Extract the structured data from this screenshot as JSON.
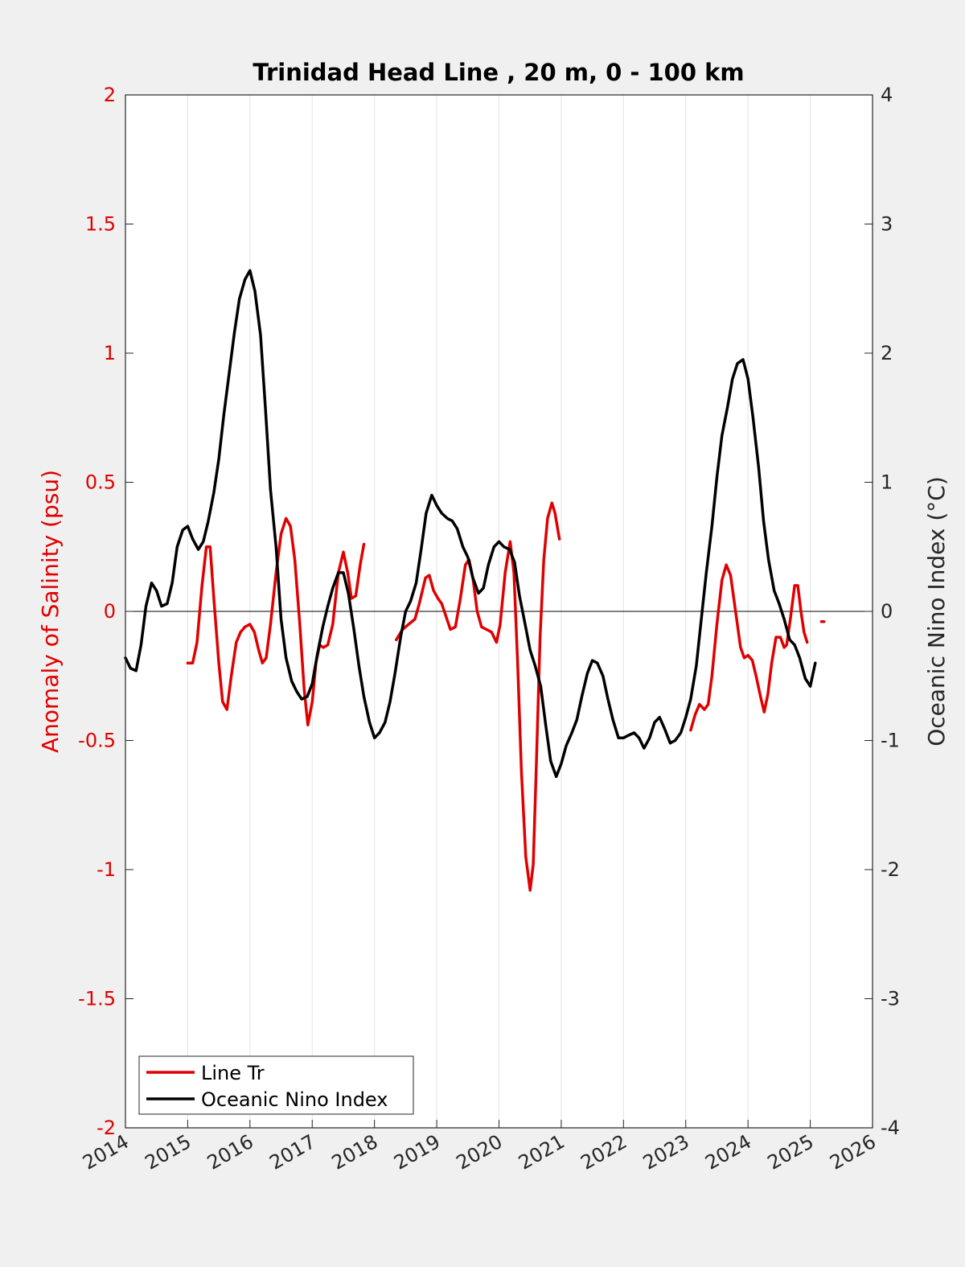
{
  "chart_data": {
    "type": "line",
    "title": "Trinidad Head Line , 20 m, 0 - 100 km",
    "ylabel_left": "Anomaly of Salinity (psu)",
    "ylabel_right": "Oceanic Nino Index (°C)",
    "xlim": [
      2014,
      2026
    ],
    "ylim_left": [
      -2,
      2
    ],
    "ylim_right": [
      -4,
      4
    ],
    "xticks": [
      2014,
      2015,
      2016,
      2017,
      2018,
      2019,
      2020,
      2021,
      2022,
      2023,
      2024,
      2025,
      2026
    ],
    "yticks_left": [
      "2",
      "1.5",
      "1",
      "0.5",
      "0",
      "-0.5",
      "-1",
      "-1.5",
      "-2"
    ],
    "yticks_right": [
      "4",
      "3",
      "2",
      "1",
      "0",
      "-1",
      "-2",
      "-3",
      "-4"
    ],
    "grid": "vertical",
    "legend_position": "bottom-left",
    "colors": {
      "salinity": "#e00000",
      "oni": "#000000",
      "axes_bg": "#ffffff",
      "figure_bg": "#f0f0f0"
    },
    "series": [
      {
        "name": "Line Tr",
        "axis": "left",
        "color": "#e00000",
        "segments": [
          [
            [
              2015.0,
              -0.2
            ],
            [
              2015.08,
              -0.2
            ],
            [
              2015.15,
              -0.12
            ],
            [
              2015.23,
              0.1
            ],
            [
              2015.3,
              0.25
            ],
            [
              2015.36,
              0.25
            ],
            [
              2015.42,
              0.05
            ],
            [
              2015.5,
              -0.2
            ],
            [
              2015.56,
              -0.35
            ],
            [
              2015.63,
              -0.38
            ],
            [
              2015.7,
              -0.25
            ],
            [
              2015.78,
              -0.12
            ],
            [
              2015.85,
              -0.08
            ],
            [
              2015.92,
              -0.06
            ],
            [
              2016.0,
              -0.05
            ],
            [
              2016.07,
              -0.08
            ],
            [
              2016.14,
              -0.15
            ],
            [
              2016.2,
              -0.2
            ],
            [
              2016.26,
              -0.18
            ],
            [
              2016.33,
              -0.05
            ],
            [
              2016.42,
              0.15
            ],
            [
              2016.5,
              0.3
            ],
            [
              2016.58,
              0.36
            ],
            [
              2016.65,
              0.33
            ],
            [
              2016.72,
              0.2
            ],
            [
              2016.8,
              -0.05
            ],
            [
              2016.87,
              -0.3
            ],
            [
              2016.93,
              -0.44
            ],
            [
              2017.0,
              -0.35
            ],
            [
              2017.06,
              -0.2
            ],
            [
              2017.12,
              -0.13
            ],
            [
              2017.18,
              -0.14
            ],
            [
              2017.25,
              -0.13
            ],
            [
              2017.33,
              -0.05
            ],
            [
              2017.42,
              0.15
            ],
            [
              2017.5,
              0.23
            ],
            [
              2017.57,
              0.15
            ],
            [
              2017.63,
              0.05
            ],
            [
              2017.7,
              0.06
            ],
            [
              2017.77,
              0.18
            ],
            [
              2017.83,
              0.26
            ]
          ],
          [
            [
              2018.35,
              -0.11
            ],
            [
              2018.45,
              -0.07
            ],
            [
              2018.55,
              -0.05
            ],
            [
              2018.65,
              -0.03
            ],
            [
              2018.72,
              0.03
            ],
            [
              2018.82,
              0.13
            ],
            [
              2018.88,
              0.14
            ],
            [
              2018.95,
              0.08
            ],
            [
              2019.02,
              0.05
            ],
            [
              2019.08,
              0.03
            ],
            [
              2019.15,
              -0.02
            ],
            [
              2019.22,
              -0.07
            ],
            [
              2019.3,
              -0.06
            ],
            [
              2019.38,
              0.05
            ],
            [
              2019.46,
              0.18
            ],
            [
              2019.52,
              0.2
            ],
            [
              2019.58,
              0.13
            ],
            [
              2019.65,
              0.0
            ],
            [
              2019.72,
              -0.06
            ],
            [
              2019.8,
              -0.07
            ],
            [
              2019.88,
              -0.08
            ],
            [
              2019.96,
              -0.12
            ],
            [
              2020.02,
              -0.05
            ],
            [
              2020.1,
              0.15
            ],
            [
              2020.18,
              0.27
            ],
            [
              2020.24,
              0.15
            ],
            [
              2020.3,
              -0.2
            ],
            [
              2020.36,
              -0.62
            ],
            [
              2020.43,
              -0.95
            ],
            [
              2020.5,
              -1.08
            ],
            [
              2020.55,
              -0.98
            ],
            [
              2020.6,
              -0.6
            ],
            [
              2020.66,
              -0.1
            ],
            [
              2020.72,
              0.2
            ],
            [
              2020.78,
              0.36
            ],
            [
              2020.85,
              0.42
            ],
            [
              2020.9,
              0.38
            ],
            [
              2020.97,
              0.28
            ]
          ],
          [
            [
              2023.08,
              -0.46
            ],
            [
              2023.15,
              -0.4
            ],
            [
              2023.22,
              -0.36
            ],
            [
              2023.3,
              -0.38
            ],
            [
              2023.36,
              -0.36
            ],
            [
              2023.42,
              -0.25
            ],
            [
              2023.5,
              -0.05
            ],
            [
              2023.58,
              0.12
            ],
            [
              2023.65,
              0.18
            ],
            [
              2023.72,
              0.14
            ],
            [
              2023.8,
              0.0
            ],
            [
              2023.88,
              -0.14
            ],
            [
              2023.94,
              -0.18
            ],
            [
              2024.0,
              -0.17
            ],
            [
              2024.07,
              -0.19
            ],
            [
              2024.13,
              -0.25
            ],
            [
              2024.2,
              -0.33
            ],
            [
              2024.26,
              -0.39
            ],
            [
              2024.32,
              -0.32
            ],
            [
              2024.38,
              -0.2
            ],
            [
              2024.45,
              -0.1
            ],
            [
              2024.52,
              -0.1
            ],
            [
              2024.58,
              -0.14
            ],
            [
              2024.62,
              -0.13
            ],
            [
              2024.68,
              -0.03
            ],
            [
              2024.75,
              0.1
            ],
            [
              2024.8,
              0.1
            ],
            [
              2024.85,
              0.0
            ],
            [
              2024.9,
              -0.08
            ],
            [
              2024.95,
              -0.12
            ]
          ],
          [
            [
              2025.18,
              -0.04
            ],
            [
              2025.22,
              -0.04
            ]
          ]
        ]
      },
      {
        "name": "Oceanic Nino Index",
        "axis": "right",
        "color": "#000000",
        "segments": [
          [
            [
              2014.0,
              -0.36
            ],
            [
              2014.08,
              -0.44
            ],
            [
              2014.17,
              -0.46
            ],
            [
              2014.25,
              -0.26
            ],
            [
              2014.33,
              0.04
            ],
            [
              2014.42,
              0.22
            ],
            [
              2014.5,
              0.16
            ],
            [
              2014.58,
              0.04
            ],
            [
              2014.67,
              0.06
            ],
            [
              2014.75,
              0.22
            ],
            [
              2014.83,
              0.5
            ],
            [
              2014.92,
              0.63
            ],
            [
              2015.0,
              0.66
            ],
            [
              2015.08,
              0.56
            ],
            [
              2015.17,
              0.48
            ],
            [
              2015.25,
              0.54
            ],
            [
              2015.33,
              0.7
            ],
            [
              2015.42,
              0.92
            ],
            [
              2015.5,
              1.18
            ],
            [
              2015.58,
              1.52
            ],
            [
              2015.67,
              1.86
            ],
            [
              2015.75,
              2.16
            ],
            [
              2015.83,
              2.42
            ],
            [
              2015.92,
              2.57
            ],
            [
              2016.0,
              2.64
            ],
            [
              2016.08,
              2.48
            ],
            [
              2016.17,
              2.14
            ],
            [
              2016.25,
              1.56
            ],
            [
              2016.33,
              0.94
            ],
            [
              2016.42,
              0.5
            ],
            [
              2016.5,
              -0.06
            ],
            [
              2016.58,
              -0.36
            ],
            [
              2016.67,
              -0.54
            ],
            [
              2016.75,
              -0.62
            ],
            [
              2016.83,
              -0.68
            ],
            [
              2016.92,
              -0.66
            ],
            [
              2017.0,
              -0.56
            ],
            [
              2017.08,
              -0.34
            ],
            [
              2017.17,
              -0.12
            ],
            [
              2017.25,
              0.04
            ],
            [
              2017.33,
              0.18
            ],
            [
              2017.42,
              0.3
            ],
            [
              2017.5,
              0.3
            ],
            [
              2017.58,
              0.14
            ],
            [
              2017.67,
              -0.14
            ],
            [
              2017.75,
              -0.42
            ],
            [
              2017.83,
              -0.66
            ],
            [
              2017.92,
              -0.86
            ],
            [
              2018.0,
              -0.98
            ],
            [
              2018.08,
              -0.94
            ],
            [
              2018.17,
              -0.86
            ],
            [
              2018.25,
              -0.7
            ],
            [
              2018.33,
              -0.48
            ],
            [
              2018.42,
              -0.2
            ],
            [
              2018.5,
              0.0
            ],
            [
              2018.58,
              0.08
            ],
            [
              2018.67,
              0.22
            ],
            [
              2018.75,
              0.48
            ],
            [
              2018.83,
              0.76
            ],
            [
              2018.92,
              0.9
            ],
            [
              2019.0,
              0.82
            ],
            [
              2019.08,
              0.76
            ],
            [
              2019.17,
              0.72
            ],
            [
              2019.25,
              0.7
            ],
            [
              2019.33,
              0.64
            ],
            [
              2019.42,
              0.5
            ],
            [
              2019.5,
              0.42
            ],
            [
              2019.58,
              0.26
            ],
            [
              2019.67,
              0.14
            ],
            [
              2019.75,
              0.18
            ],
            [
              2019.83,
              0.36
            ],
            [
              2019.92,
              0.5
            ],
            [
              2020.0,
              0.54
            ],
            [
              2020.08,
              0.5
            ],
            [
              2020.17,
              0.48
            ],
            [
              2020.25,
              0.38
            ],
            [
              2020.33,
              0.12
            ],
            [
              2020.42,
              -0.1
            ],
            [
              2020.5,
              -0.3
            ],
            [
              2020.58,
              -0.42
            ],
            [
              2020.67,
              -0.58
            ],
            [
              2020.75,
              -0.88
            ],
            [
              2020.83,
              -1.16
            ],
            [
              2020.92,
              -1.28
            ],
            [
              2021.0,
              -1.18
            ],
            [
              2021.08,
              -1.04
            ],
            [
              2021.17,
              -0.94
            ],
            [
              2021.25,
              -0.84
            ],
            [
              2021.33,
              -0.66
            ],
            [
              2021.42,
              -0.48
            ],
            [
              2021.5,
              -0.38
            ],
            [
              2021.58,
              -0.4
            ],
            [
              2021.67,
              -0.5
            ],
            [
              2021.75,
              -0.68
            ],
            [
              2021.83,
              -0.84
            ],
            [
              2021.92,
              -0.98
            ],
            [
              2022.0,
              -0.98
            ],
            [
              2022.08,
              -0.96
            ],
            [
              2022.17,
              -0.94
            ],
            [
              2022.25,
              -0.98
            ],
            [
              2022.33,
              -1.06
            ],
            [
              2022.42,
              -0.98
            ],
            [
              2022.5,
              -0.86
            ],
            [
              2022.58,
              -0.82
            ],
            [
              2022.67,
              -0.92
            ],
            [
              2022.75,
              -1.02
            ],
            [
              2022.83,
              -1.0
            ],
            [
              2022.92,
              -0.94
            ],
            [
              2023.0,
              -0.82
            ],
            [
              2023.08,
              -0.68
            ],
            [
              2023.17,
              -0.42
            ],
            [
              2023.25,
              -0.06
            ],
            [
              2023.33,
              0.3
            ],
            [
              2023.42,
              0.66
            ],
            [
              2023.5,
              1.04
            ],
            [
              2023.58,
              1.36
            ],
            [
              2023.67,
              1.58
            ],
            [
              2023.75,
              1.8
            ],
            [
              2023.83,
              1.92
            ],
            [
              2023.92,
              1.95
            ],
            [
              2024.0,
              1.8
            ],
            [
              2024.08,
              1.5
            ],
            [
              2024.17,
              1.12
            ],
            [
              2024.25,
              0.7
            ],
            [
              2024.33,
              0.4
            ],
            [
              2024.42,
              0.16
            ],
            [
              2024.5,
              0.06
            ],
            [
              2024.58,
              -0.06
            ],
            [
              2024.67,
              -0.22
            ],
            [
              2024.75,
              -0.26
            ],
            [
              2024.83,
              -0.36
            ],
            [
              2024.92,
              -0.52
            ],
            [
              2025.0,
              -0.58
            ],
            [
              2025.08,
              -0.4
            ]
          ]
        ]
      }
    ]
  }
}
